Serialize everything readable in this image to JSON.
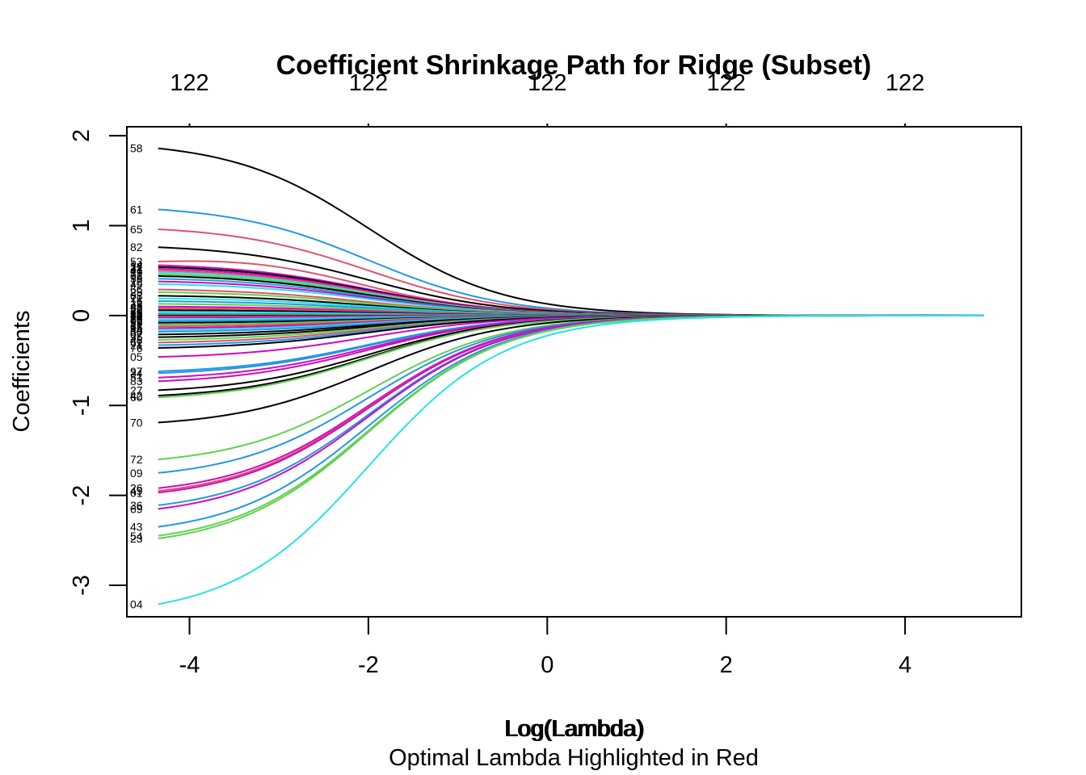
{
  "chart_data": {
    "type": "line",
    "title": "Coefficient Shrinkage Path for Ridge (Subset)",
    "xlabel": "Log(Lambda)",
    "xlabel_overlay": "Log(Lambda)",
    "subtitle": "Optimal Lambda Highlighted in Red",
    "ylabel": "Coefficients",
    "xlim": [
      -4.7,
      5.3
    ],
    "ylim": [
      -3.35,
      2.1
    ],
    "x_start": -4.35,
    "x_end": 4.88,
    "x_ticks": [
      "-4",
      "-2",
      "0",
      "2",
      "4"
    ],
    "y_ticks": [
      "-3",
      "-2",
      "-1",
      "0",
      "1",
      "2"
    ],
    "top_axis": {
      "ticks_at": [
        -4,
        -2,
        0,
        2,
        4
      ],
      "labels": [
        "122",
        "122",
        "122",
        "122",
        "122"
      ]
    },
    "grid": false,
    "palette": [
      "#000000",
      "#DF536B",
      "#61D04F",
      "#2297E6",
      "#28E2E5",
      "#CD0BBC"
    ],
    "series": [
      {
        "label": "58",
        "start": 1.86,
        "color": "#000000"
      },
      {
        "label": "61",
        "start": 1.18,
        "color": "#2297E6"
      },
      {
        "label": "65",
        "start": 0.96,
        "color": "#DF536B"
      },
      {
        "label": "82",
        "start": 0.76,
        "color": "#000000"
      },
      {
        "label": "53",
        "start": 0.6,
        "color": "#DF536B",
        "hump": true
      },
      {
        "label": "14",
        "start": 0.56,
        "color": "#CD0BBC"
      },
      {
        "label": "22",
        "start": 0.54,
        "color": "#000000"
      },
      {
        "label": "31",
        "start": 0.52,
        "color": "#CD0BBC"
      },
      {
        "label": "47",
        "start": 0.5,
        "color": "#DF536B"
      },
      {
        "label": "19",
        "start": 0.48,
        "color": "#28E2E5"
      },
      {
        "label": "77",
        "start": 0.46,
        "color": "#61D04F"
      },
      {
        "label": "03",
        "start": 0.44,
        "color": "#000000"
      },
      {
        "label": "38",
        "start": 0.41,
        "color": "#2297E6"
      },
      {
        "label": "12",
        "start": 0.38,
        "color": "#CD0BBC"
      },
      {
        "label": "49",
        "start": 0.35,
        "color": "#28E2E5"
      },
      {
        "label": "66",
        "start": 0.29,
        "color": "#DF536B"
      },
      {
        "label": "25",
        "start": 0.26,
        "color": "#61D04F"
      },
      {
        "label": "08",
        "start": 0.22,
        "color": "#000000"
      },
      {
        "label": "71",
        "start": 0.19,
        "color": "#28E2E5"
      },
      {
        "label": "16",
        "start": 0.16,
        "color": "#2297E6"
      },
      {
        "label": "33",
        "start": 0.13,
        "color": "#61D04F"
      },
      {
        "label": "45",
        "start": 0.1,
        "color": "#CD0BBC"
      },
      {
        "label": "52",
        "start": 0.08,
        "color": "#DF536B"
      },
      {
        "label": "29",
        "start": 0.06,
        "color": "#000000"
      },
      {
        "label": "68",
        "start": 0.04,
        "color": "#28E2E5"
      },
      {
        "label": "11",
        "start": 0.02,
        "color": "#2297E6"
      },
      {
        "label": "40",
        "start": 0.01,
        "color": "#61D04F"
      },
      {
        "label": "57",
        "start": 0.0,
        "color": "#000000"
      },
      {
        "label": "20",
        "start": -0.01,
        "color": "#DF536B"
      },
      {
        "label": "74",
        "start": -0.02,
        "color": "#CD0BBC"
      },
      {
        "label": "36",
        "start": -0.04,
        "color": "#28E2E5"
      },
      {
        "label": "02",
        "start": -0.06,
        "color": "#2297E6"
      },
      {
        "label": "59",
        "start": -0.08,
        "color": "#000000"
      },
      {
        "label": "27",
        "start": -0.1,
        "color": "#61D04F"
      },
      {
        "label": "63",
        "start": -0.12,
        "color": "#DF536B"
      },
      {
        "label": "15",
        "start": -0.14,
        "color": "#CD0BBC"
      },
      {
        "label": "44",
        "start": -0.16,
        "color": "#28E2E5"
      },
      {
        "label": "80",
        "start": -0.18,
        "color": "#2297E6"
      },
      {
        "label": "07",
        "start": -0.21,
        "color": "#000000"
      },
      {
        "label": "35",
        "start": -0.24,
        "color": "#000000"
      },
      {
        "label": "48",
        "start": -0.27,
        "color": "#61D04F"
      },
      {
        "label": "62",
        "start": -0.3,
        "color": "#DF536B"
      },
      {
        "label": "21",
        "start": -0.33,
        "color": "#2297E6"
      },
      {
        "label": "76",
        "start": -0.36,
        "color": "#000000"
      },
      {
        "label": "05",
        "start": -0.46,
        "color": "#CD0BBC"
      },
      {
        "label": "97",
        "start": -0.62,
        "color": "#2297E6"
      },
      {
        "label": "34",
        "start": -0.64,
        "color": "#2297E6"
      },
      {
        "label": "51",
        "start": -0.69,
        "color": "#CD0BBC"
      },
      {
        "label": "83",
        "start": -0.73,
        "color": "#CD0BBC"
      },
      {
        "label": "27",
        "start": -0.83,
        "color": "#000000"
      },
      {
        "label": "42",
        "start": -0.89,
        "color": "#000000"
      },
      {
        "label": "60",
        "start": -0.91,
        "color": "#61D04F"
      },
      {
        "label": "70",
        "start": -1.19,
        "color": "#000000"
      },
      {
        "label": "72",
        "start": -1.6,
        "color": "#61D04F"
      },
      {
        "label": "09",
        "start": -1.75,
        "color": "#2297E6"
      },
      {
        "label": "26",
        "start": -1.92,
        "color": "#CD0BBC"
      },
      {
        "label": "49",
        "start": -1.95,
        "color": "#DF536B"
      },
      {
        "label": "01",
        "start": -1.97,
        "color": "#CD0BBC"
      },
      {
        "label": "36",
        "start": -2.11,
        "color": "#2297E6"
      },
      {
        "label": "69",
        "start": -2.15,
        "color": "#CD0BBC"
      },
      {
        "label": "43",
        "start": -2.35,
        "color": "#2297E6"
      },
      {
        "label": "54",
        "start": -2.45,
        "color": "#61D04F"
      },
      {
        "label": "23",
        "start": -2.48,
        "color": "#61D04F"
      },
      {
        "label": "04",
        "start": -3.21,
        "color": "#28E2E5"
      }
    ]
  }
}
